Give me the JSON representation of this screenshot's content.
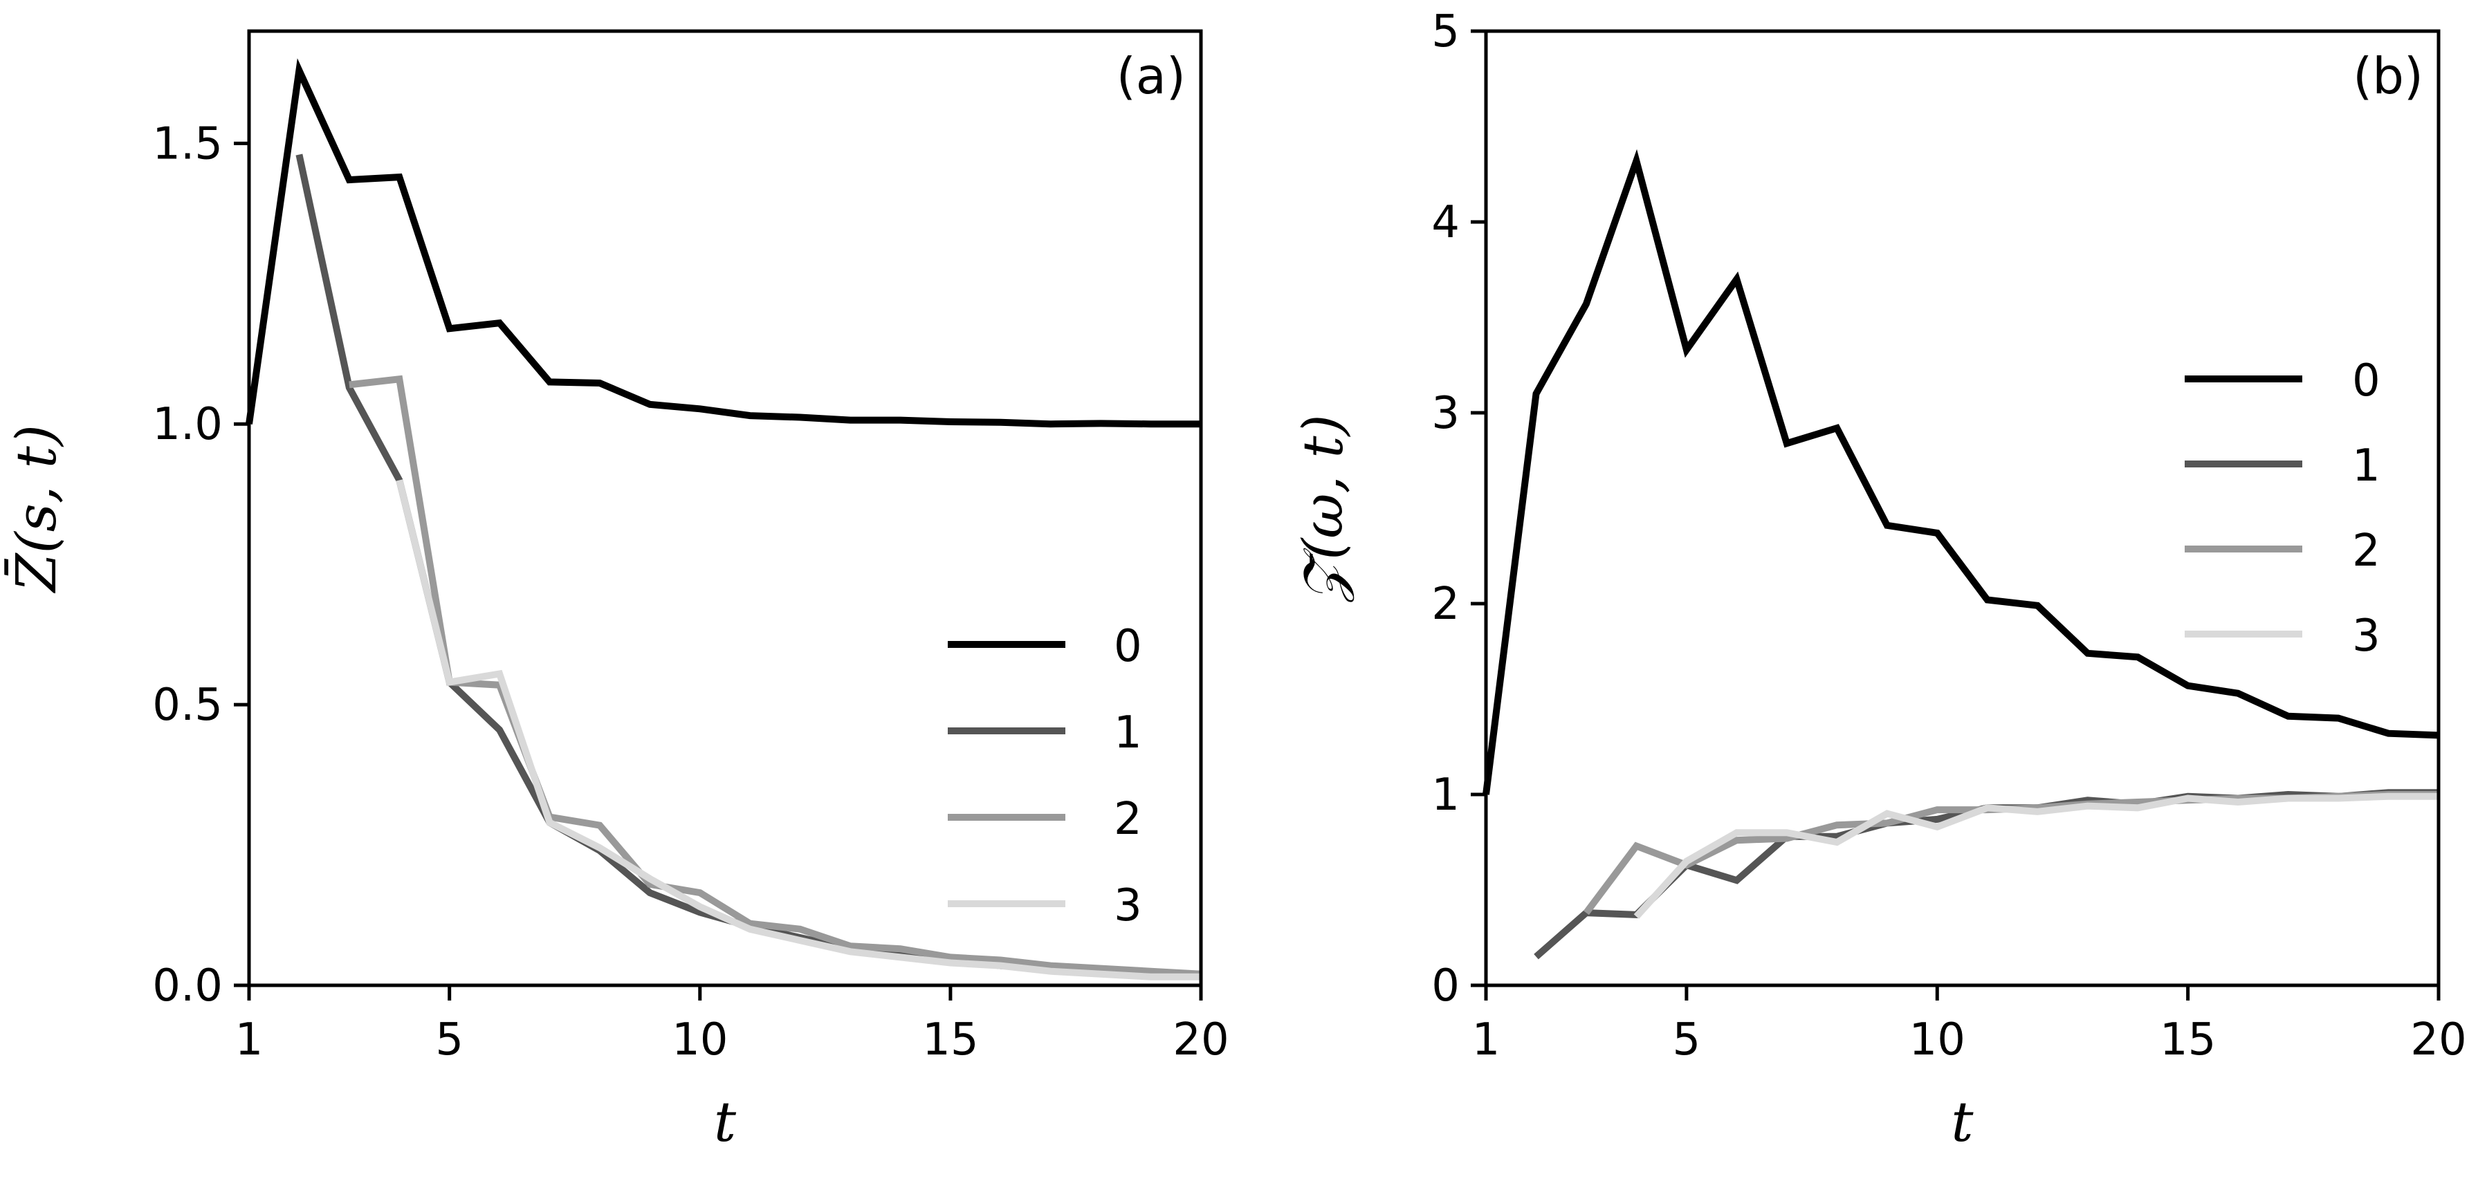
{
  "chart_data": [
    {
      "type": "line",
      "panel_label": "(a)",
      "xlabel": "t",
      "ylabel": "Z̄(s, t)",
      "xlim": [
        1,
        20
      ],
      "ylim": [
        0,
        1.7
      ],
      "xticks": [
        1,
        5,
        10,
        15,
        20
      ],
      "yticks": [
        0.0,
        0.5,
        1.0,
        1.5
      ],
      "ytick_labels": [
        "0.0",
        "0.5",
        "1.0",
        "1.5"
      ],
      "grid": false,
      "legend_placement": "center-right",
      "series": [
        {
          "name": "0",
          "color": "#000000",
          "x": [
            1,
            2,
            3,
            4,
            5,
            6,
            7,
            8,
            9,
            10,
            11,
            12,
            13,
            14,
            15,
            16,
            17,
            18,
            19,
            20
          ],
          "y": [
            1.0,
            1.63,
            1.435,
            1.44,
            1.17,
            1.18,
            1.075,
            1.073,
            1.035,
            1.027,
            1.015,
            1.012,
            1.007,
            1.007,
            1.004,
            1.003,
            1.0,
            1.001,
            1.0,
            1.0
          ]
        },
        {
          "name": "1",
          "color": "#555555",
          "x": [
            2,
            3,
            4,
            5,
            6,
            7,
            8,
            9,
            10,
            11,
            12,
            13,
            14,
            15,
            16,
            17,
            18,
            19,
            20
          ],
          "y": [
            1.48,
            1.065,
            0.9,
            0.54,
            0.455,
            0.29,
            0.24,
            0.165,
            0.13,
            0.105,
            0.085,
            0.065,
            0.055,
            0.045,
            0.035,
            0.03,
            0.025,
            0.02,
            0.02
          ]
        },
        {
          "name": "2",
          "color": "#999999",
          "x": [
            3,
            4,
            5,
            6,
            7,
            8,
            9,
            10,
            11,
            12,
            13,
            14,
            15,
            16,
            17,
            18,
            19,
            20
          ],
          "y": [
            1.07,
            1.08,
            0.54,
            0.535,
            0.3,
            0.285,
            0.18,
            0.165,
            0.11,
            0.1,
            0.07,
            0.065,
            0.05,
            0.045,
            0.035,
            0.03,
            0.025,
            0.02
          ]
        },
        {
          "name": "3",
          "color": "#d9d9d9",
          "x": [
            4,
            5,
            6,
            7,
            8,
            9,
            10,
            11,
            12,
            13,
            14,
            15,
            16,
            17,
            18,
            19,
            20
          ],
          "y": [
            0.9,
            0.54,
            0.555,
            0.29,
            0.245,
            0.19,
            0.14,
            0.1,
            0.08,
            0.06,
            0.05,
            0.04,
            0.035,
            0.025,
            0.02,
            0.015,
            0.015
          ]
        }
      ]
    },
    {
      "type": "line",
      "panel_label": "(b)",
      "xlabel": "t",
      "ylabel": "𝒵̄(ω, t)",
      "xlim": [
        1,
        20
      ],
      "ylim": [
        0,
        5
      ],
      "xticks": [
        1,
        5,
        10,
        15,
        20
      ],
      "yticks": [
        0,
        1,
        2,
        3,
        4,
        5
      ],
      "ytick_labels": [
        "0",
        "1",
        "2",
        "3",
        "4",
        "5"
      ],
      "grid": false,
      "legend_placement": "upper-right",
      "series": [
        {
          "name": "0",
          "color": "#000000",
          "x": [
            1,
            2,
            3,
            4,
            5,
            6,
            7,
            8,
            9,
            10,
            11,
            12,
            13,
            14,
            15,
            16,
            17,
            18,
            19,
            20
          ],
          "y": [
            1.0,
            3.1,
            3.57,
            4.32,
            3.33,
            3.7,
            2.84,
            2.92,
            2.41,
            2.37,
            2.02,
            1.99,
            1.74,
            1.72,
            1.57,
            1.53,
            1.41,
            1.4,
            1.32,
            1.31
          ]
        },
        {
          "name": "1",
          "color": "#555555",
          "x": [
            2,
            3,
            4,
            5,
            6,
            7,
            8,
            9,
            10,
            11,
            12,
            13,
            14,
            15,
            16,
            17,
            18,
            19,
            20
          ],
          "y": [
            0.15,
            0.38,
            0.37,
            0.63,
            0.55,
            0.78,
            0.78,
            0.85,
            0.87,
            0.93,
            0.93,
            0.97,
            0.95,
            0.99,
            0.98,
            1.0,
            0.99,
            1.01,
            1.01
          ]
        },
        {
          "name": "2",
          "color": "#999999",
          "x": [
            3,
            4,
            5,
            6,
            7,
            8,
            9,
            10,
            11,
            12,
            13,
            14,
            15,
            16,
            17,
            18,
            19,
            20
          ],
          "y": [
            0.38,
            0.73,
            0.63,
            0.76,
            0.77,
            0.84,
            0.85,
            0.92,
            0.92,
            0.93,
            0.95,
            0.96,
            0.97,
            0.98,
            0.98,
            0.99,
            1.0,
            1.0
          ]
        },
        {
          "name": "3",
          "color": "#d9d9d9",
          "x": [
            4,
            5,
            6,
            7,
            8,
            9,
            10,
            11,
            12,
            13,
            14,
            15,
            16,
            17,
            18,
            19,
            20
          ],
          "y": [
            0.36,
            0.65,
            0.8,
            0.8,
            0.75,
            0.9,
            0.83,
            0.93,
            0.91,
            0.94,
            0.93,
            0.98,
            0.96,
            0.98,
            0.98,
            0.99,
            0.99
          ]
        }
      ]
    }
  ]
}
